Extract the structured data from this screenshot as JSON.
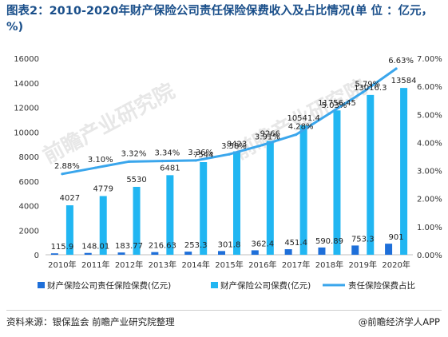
{
  "title": "图表2：2010-2020年财产保险公司责任保险保费收入及占比情况(单 位 ：亿元，%)",
  "source": "资料来源：银保监会 前瞻产业研究院整理",
  "credit": "@前瞻经济学人APP",
  "watermark": "前瞻产业研究院",
  "colors": {
    "liability": "#1e6fd9",
    "total": "#21b6f2",
    "share": "#3aa6ec"
  },
  "chart_data": {
    "type": "bar",
    "categories": [
      "2010年",
      "2011年",
      "2012年",
      "2013年",
      "2014年",
      "2015年",
      "2016年",
      "2017年",
      "2018年",
      "2019年",
      "2020年"
    ],
    "series": [
      {
        "name": "财产保险公司责任保险保费(亿元)",
        "type": "bar",
        "axis": "left",
        "values": [
          115.9,
          148.01,
          183.77,
          216.63,
          253.3,
          301.8,
          362.4,
          451.4,
          590.89,
          753.3,
          901
        ],
        "labels": [
          "115.9",
          "148.01",
          "183.77",
          "216.63",
          "253.3",
          "301.8",
          "362.4",
          "451.4",
          "590.89",
          "753.3",
          "901"
        ]
      },
      {
        "name": "财产保险公司保费(亿元)",
        "type": "bar",
        "axis": "left",
        "values": [
          4027,
          4779,
          5530,
          6481,
          7544,
          8423,
          9266,
          10541.4,
          11756.45,
          13016.3,
          13584
        ],
        "labels": [
          "4027",
          "4779",
          "5530",
          "6481",
          "7544",
          "8423",
          "9266",
          "10541.4",
          "11756.45",
          "13016.3",
          "13584"
        ]
      },
      {
        "name": "责任保险保费占比",
        "type": "line",
        "axis": "right",
        "values": [
          2.88,
          3.1,
          3.32,
          3.34,
          3.36,
          3.58,
          3.91,
          4.28,
          5.03,
          5.79,
          6.63
        ],
        "labels": [
          "2.88%",
          "3.10%",
          "3.32%",
          "3.34%",
          "3.36%",
          "3.58%",
          "3.91%",
          "4.28%",
          "5.03%",
          "5.79%",
          "6.63%"
        ]
      }
    ],
    "y_left": {
      "min": 0,
      "max": 16000,
      "ticks": [
        "0",
        "2000",
        "4000",
        "6000",
        "8000",
        "10000",
        "12000",
        "14000",
        "16000"
      ]
    },
    "y_right": {
      "min": 0,
      "max": 7,
      "ticks": [
        "0.00%",
        "1.00%",
        "2.00%",
        "3.00%",
        "4.00%",
        "5.00%",
        "6.00%",
        "7.00%"
      ]
    },
    "grid": false,
    "legend_position": "bottom"
  }
}
